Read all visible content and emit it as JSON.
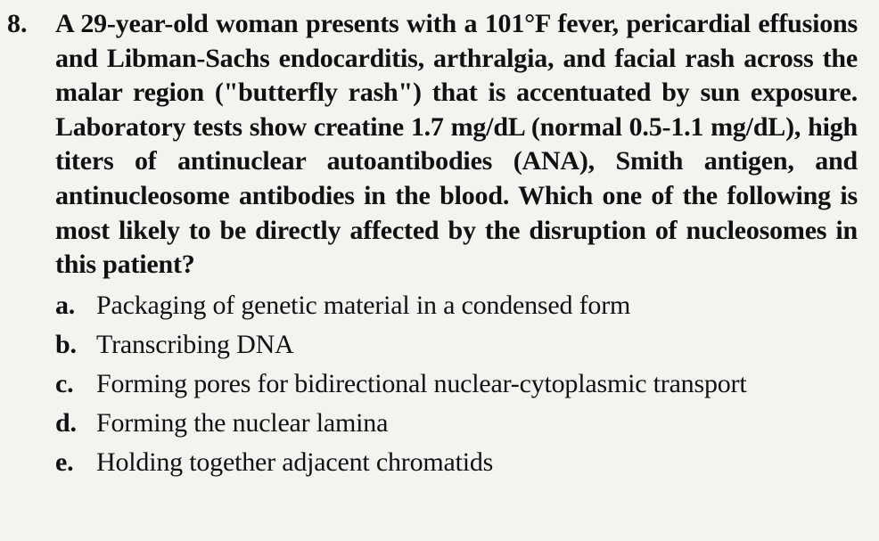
{
  "question": {
    "number": "8.",
    "stem": "A 29-year-old woman presents with a 101°F fever, pericardial effusions and Libman-Sachs endocarditis, arthralgia, and facial rash across the malar region (\"butterfly rash\") that is accentuated by sun exposure. Laboratory tests show creatine 1.7 mg/dL (normal 0.5-1.1 mg/dL), high titers of antinuclear autoantibodies (ANA), Smith antigen, and antinucleosome antibodies in the blood. Which one of the following is most likely to be directly affected by the disruption of nucleosomes in this patient?",
    "options": [
      {
        "letter": "a.",
        "text": "Packaging of genetic material in a condensed form"
      },
      {
        "letter": "b.",
        "text": "Transcribing DNA"
      },
      {
        "letter": "c.",
        "text": "Forming pores for bidirectional nuclear-cytoplasmic transport"
      },
      {
        "letter": "d.",
        "text": "Forming the nuclear lamina"
      },
      {
        "letter": "e.",
        "text": "Holding together adjacent chromatids"
      }
    ]
  }
}
